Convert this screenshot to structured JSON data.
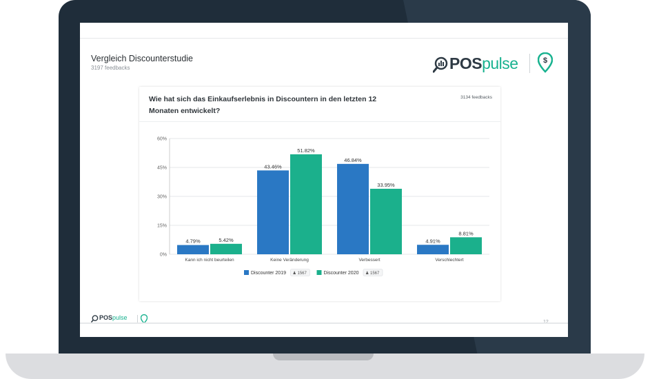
{
  "slide": {
    "title": "Vergleich Discounterstudie",
    "subtitle": "3197 feedbacks",
    "logo_text_pos": "POS",
    "logo_text_pulse": "pulse",
    "page_number": "12"
  },
  "card": {
    "question": "Wie hat sich das Einkaufserlebnis in Discountern in den letzten 12 Monaten entwickelt?",
    "feedbacks": "3134 feedbacks"
  },
  "colors": {
    "series_2019": "#2a78c4",
    "series_2020": "#1bb08c",
    "brand_green": "#18b28f",
    "brand_dark": "#2e3a44"
  },
  "chart_data": {
    "type": "bar",
    "categories": [
      "Kann ich nicht beurteilen",
      "Keine Veränderung",
      "Verbessert",
      "Verschlechtert"
    ],
    "series": [
      {
        "name": "Discounter 2019",
        "count": "1567",
        "values": [
          4.79,
          43.46,
          46.84,
          4.91
        ],
        "labels": [
          "4.79%",
          "43.46%",
          "46.84%",
          "4.91%"
        ]
      },
      {
        "name": "Discounter 2020",
        "count": "1567",
        "values": [
          5.42,
          51.82,
          33.95,
          8.81
        ],
        "labels": [
          "5.42%",
          "51.82%",
          "33.95%",
          "8.81%"
        ]
      }
    ],
    "yticks": [
      0,
      15,
      30,
      45,
      60
    ],
    "ytick_labels": [
      "0%",
      "15%",
      "30%",
      "45%",
      "60%"
    ],
    "ylim": [
      0,
      60
    ],
    "grid": true,
    "legend": "bottom-center"
  }
}
